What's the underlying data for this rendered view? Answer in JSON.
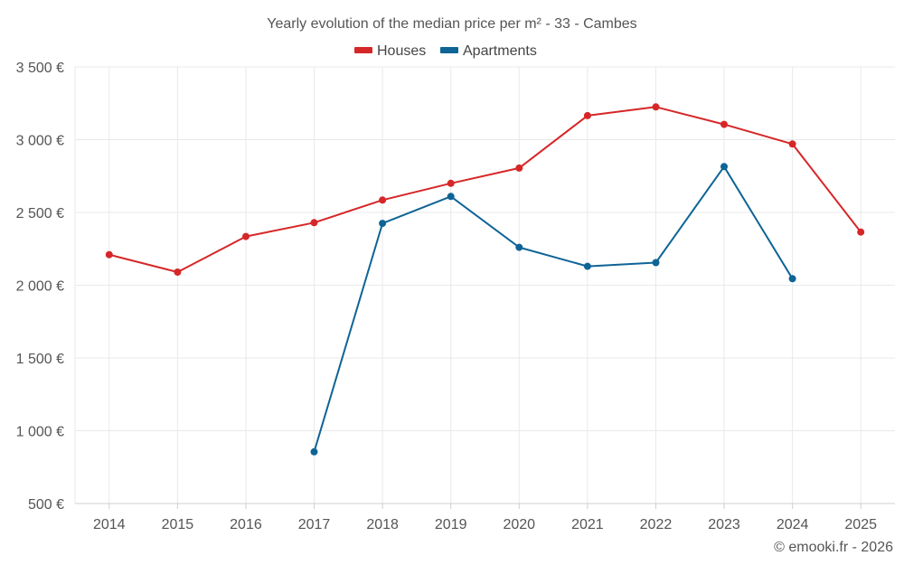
{
  "chart_data": {
    "type": "line",
    "title": "Yearly evolution of the median price per m² - 33 - Cambes",
    "categories": [
      "2014",
      "2015",
      "2016",
      "2017",
      "2018",
      "2019",
      "2020",
      "2021",
      "2022",
      "2023",
      "2024",
      "2025"
    ],
    "y_ticks": [
      500,
      1000,
      1500,
      2000,
      2500,
      3000,
      3500
    ],
    "y_tick_labels": [
      "500 €",
      "1 000 €",
      "1 500 €",
      "2 000 €",
      "2 500 €",
      "3 000 €",
      "3 500 €"
    ],
    "ylim": [
      500,
      3500
    ],
    "grid": true,
    "legend_position": "top-center",
    "series": [
      {
        "name": "Houses",
        "color": "#d62728",
        "values": [
          2210,
          2090,
          2335,
          2430,
          2585,
          2700,
          2805,
          3165,
          3225,
          3105,
          2970,
          2365
        ]
      },
      {
        "name": "Apartments",
        "color": "#0f6496",
        "values": [
          null,
          null,
          null,
          855,
          2425,
          2610,
          2260,
          2130,
          2155,
          2815,
          2045,
          null
        ]
      }
    ],
    "credit": "© emooki.fr - 2026"
  }
}
